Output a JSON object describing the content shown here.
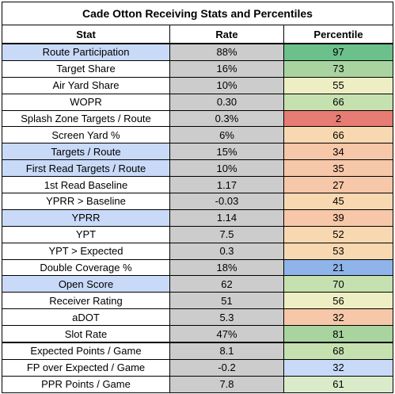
{
  "title": "Cade Otton Receiving Stats and Percentiles",
  "headers": {
    "stat": "Stat",
    "rate": "Rate",
    "percentile": "Percentile"
  },
  "colors": {
    "highlight_blue": "#c9daf8",
    "rate_gray": "#cccccc",
    "pct_green_strong": "#6cc08b",
    "pct_green": "#a9d4a0",
    "pct_green_light": "#c5e1b0",
    "pct_yellow": "#eeeec4",
    "pct_orange_light": "#f8d8b0",
    "pct_orange": "#f6c7a8",
    "pct_red": "#e67c73",
    "pct_blue": "#8fb4ea"
  },
  "rows": [
    {
      "stat": "Route Participation",
      "rate": "88%",
      "percentile": "97",
      "stat_bg": "#c9daf8",
      "pct_bg": "#6cc08b"
    },
    {
      "stat": "Target Share",
      "rate": "16%",
      "percentile": "73",
      "stat_bg": "#ffffff",
      "pct_bg": "#a9d4a0"
    },
    {
      "stat": "Air Yard Share",
      "rate": "10%",
      "percentile": "55",
      "stat_bg": "#ffffff",
      "pct_bg": "#eeeec4"
    },
    {
      "stat": "WOPR",
      "rate": "0.30",
      "percentile": "66",
      "stat_bg": "#ffffff",
      "pct_bg": "#c5e1b0"
    },
    {
      "stat": "Splash Zone Targets / Route",
      "rate": "0.3%",
      "percentile": "2",
      "stat_bg": "#ffffff",
      "pct_bg": "#e67c73"
    },
    {
      "stat": "Screen Yard %",
      "rate": "6%",
      "percentile": "66",
      "stat_bg": "#ffffff",
      "pct_bg": "#f8d8b0"
    },
    {
      "stat": "Targets / Route",
      "rate": "15%",
      "percentile": "34",
      "stat_bg": "#c9daf8",
      "pct_bg": "#f6c7a8"
    },
    {
      "stat": "First Read Targets / Route",
      "rate": "10%",
      "percentile": "35",
      "stat_bg": "#c9daf8",
      "pct_bg": "#f6c7a8"
    },
    {
      "stat": "1st Read Baseline",
      "rate": "1.17",
      "percentile": "27",
      "stat_bg": "#ffffff",
      "pct_bg": "#f6c7a8"
    },
    {
      "stat": "YPRR > Baseline",
      "rate": "-0.03",
      "percentile": "45",
      "stat_bg": "#ffffff",
      "pct_bg": "#f8d8b0"
    },
    {
      "stat": "YPRR",
      "rate": "1.14",
      "percentile": "39",
      "stat_bg": "#c9daf8",
      "pct_bg": "#f6c7a8"
    },
    {
      "stat": "YPT",
      "rate": "7.5",
      "percentile": "52",
      "stat_bg": "#ffffff",
      "pct_bg": "#f8d8b0"
    },
    {
      "stat": "YPT > Expected",
      "rate": "0.3",
      "percentile": "53",
      "stat_bg": "#ffffff",
      "pct_bg": "#f8d8b0"
    },
    {
      "stat": "Double Coverage %",
      "rate": "18%",
      "percentile": "21",
      "stat_bg": "#ffffff",
      "pct_bg": "#8fb4ea"
    },
    {
      "stat": "Open Score",
      "rate": "62",
      "percentile": "70",
      "stat_bg": "#c9daf8",
      "pct_bg": "#c5e1b0"
    },
    {
      "stat": "Receiver Rating",
      "rate": "51",
      "percentile": "56",
      "stat_bg": "#ffffff",
      "pct_bg": "#eeeec4"
    },
    {
      "stat": "aDOT",
      "rate": "5.3",
      "percentile": "32",
      "stat_bg": "#ffffff",
      "pct_bg": "#f6c7a8"
    },
    {
      "stat": "Slot Rate",
      "rate": "47%",
      "percentile": "81",
      "stat_bg": "#ffffff",
      "pct_bg": "#a9d4a0"
    },
    {
      "stat": "Expected Points / Game",
      "rate": "8.1",
      "percentile": "68",
      "stat_bg": "#ffffff",
      "pct_bg": "#c5e1b0",
      "separator": true
    },
    {
      "stat": "FP over Expected / Game",
      "rate": "-0.2",
      "percentile": "32",
      "stat_bg": "#ffffff",
      "pct_bg": "#c9daf8"
    },
    {
      "stat": "PPR Points / Game",
      "rate": "7.8",
      "percentile": "61",
      "stat_bg": "#ffffff",
      "pct_bg": "#d9ebc9"
    }
  ]
}
